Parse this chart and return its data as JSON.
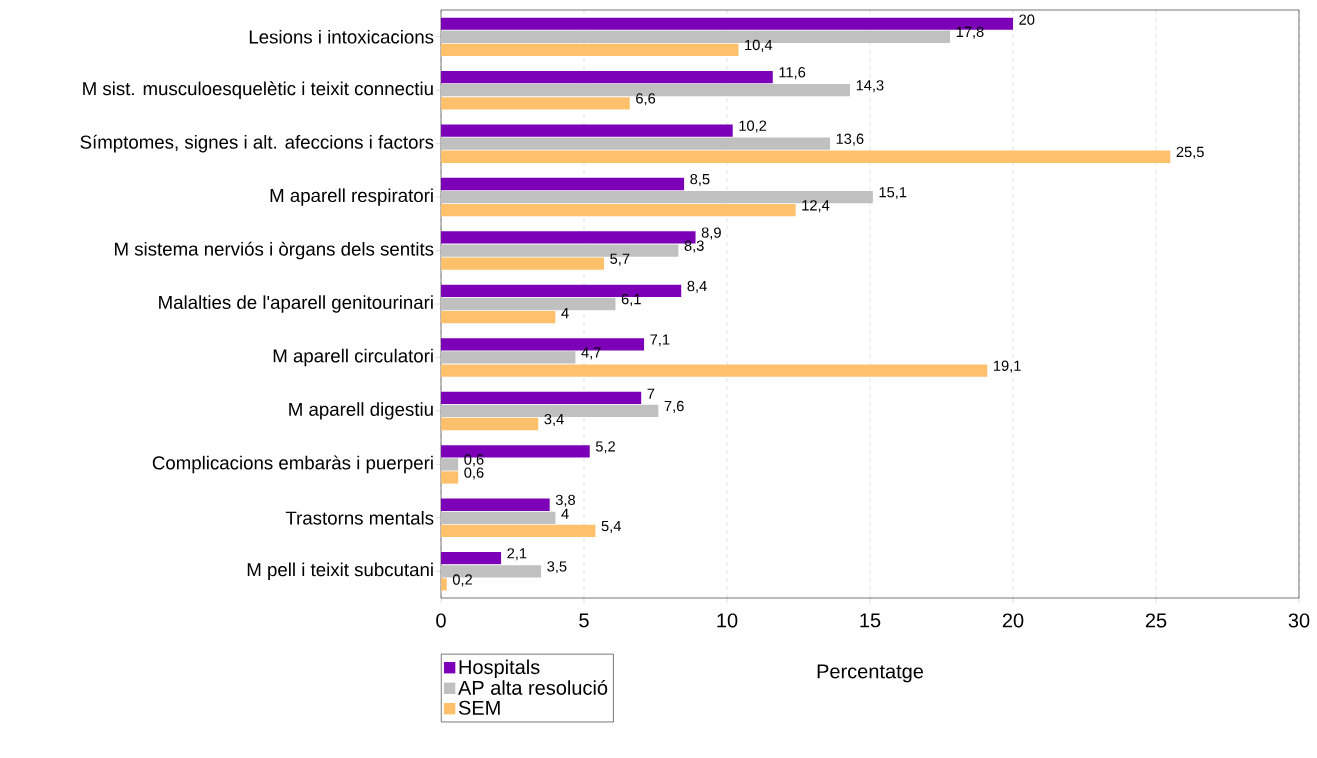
{
  "chart_data": {
    "type": "bar",
    "orientation": "horizontal",
    "xlabel": "Percentatge",
    "categories": [
      "Lesions i intoxicacions",
      "M sist. musculoesquelètic i teixit connectiu",
      "Símptomes, signes i alt. afeccions i factors",
      "M aparell respiratori",
      "M sistema nerviós i òrgans dels sentits",
      "Malalties de l'aparell genitourinari",
      "M aparell circulatori",
      "M aparell digestiu",
      "Complicacions embaràs i puerperi",
      "Trastorns mentals",
      "M pell i teixit subcutani"
    ],
    "series": [
      {
        "name": "Hospitals",
        "color": "#7b00b8",
        "values": [
          20,
          11.6,
          10.2,
          8.5,
          8.9,
          8.4,
          7.1,
          7,
          5.2,
          3.8,
          2.1
        ],
        "value_labels": [
          "20",
          "11,6",
          "10,2",
          "8,5",
          "8,9",
          "8,4",
          "7,1",
          "7",
          "5,2",
          "3,8",
          "2,1"
        ]
      },
      {
        "name": "AP alta resolució",
        "color": "#c0c0c0",
        "values": [
          17.8,
          14.3,
          13.6,
          15.1,
          8.3,
          6.1,
          4.7,
          7.6,
          0.6,
          4,
          3.5
        ],
        "value_labels": [
          "17,8",
          "14,3",
          "13,6",
          "15,1",
          "8,3",
          "6,1",
          "4,7",
          "7,6",
          "0,6",
          "4",
          "3,5"
        ]
      },
      {
        "name": "SEM",
        "color": "#ffc06c",
        "values": [
          10.4,
          6.6,
          25.5,
          12.4,
          5.7,
          4,
          19.1,
          3.4,
          0.6,
          5.4,
          0.2
        ],
        "value_labels": [
          "10,4",
          "6,6",
          "25,5",
          "12,4",
          "5,7",
          "4",
          "19,1",
          "3,4",
          "0,6",
          "5,4",
          "0,2"
        ]
      }
    ],
    "xlim": [
      0,
      30
    ],
    "xticks": [
      0,
      5,
      10,
      15,
      20,
      25,
      30
    ],
    "grid": "x",
    "legend": "bottom left"
  }
}
